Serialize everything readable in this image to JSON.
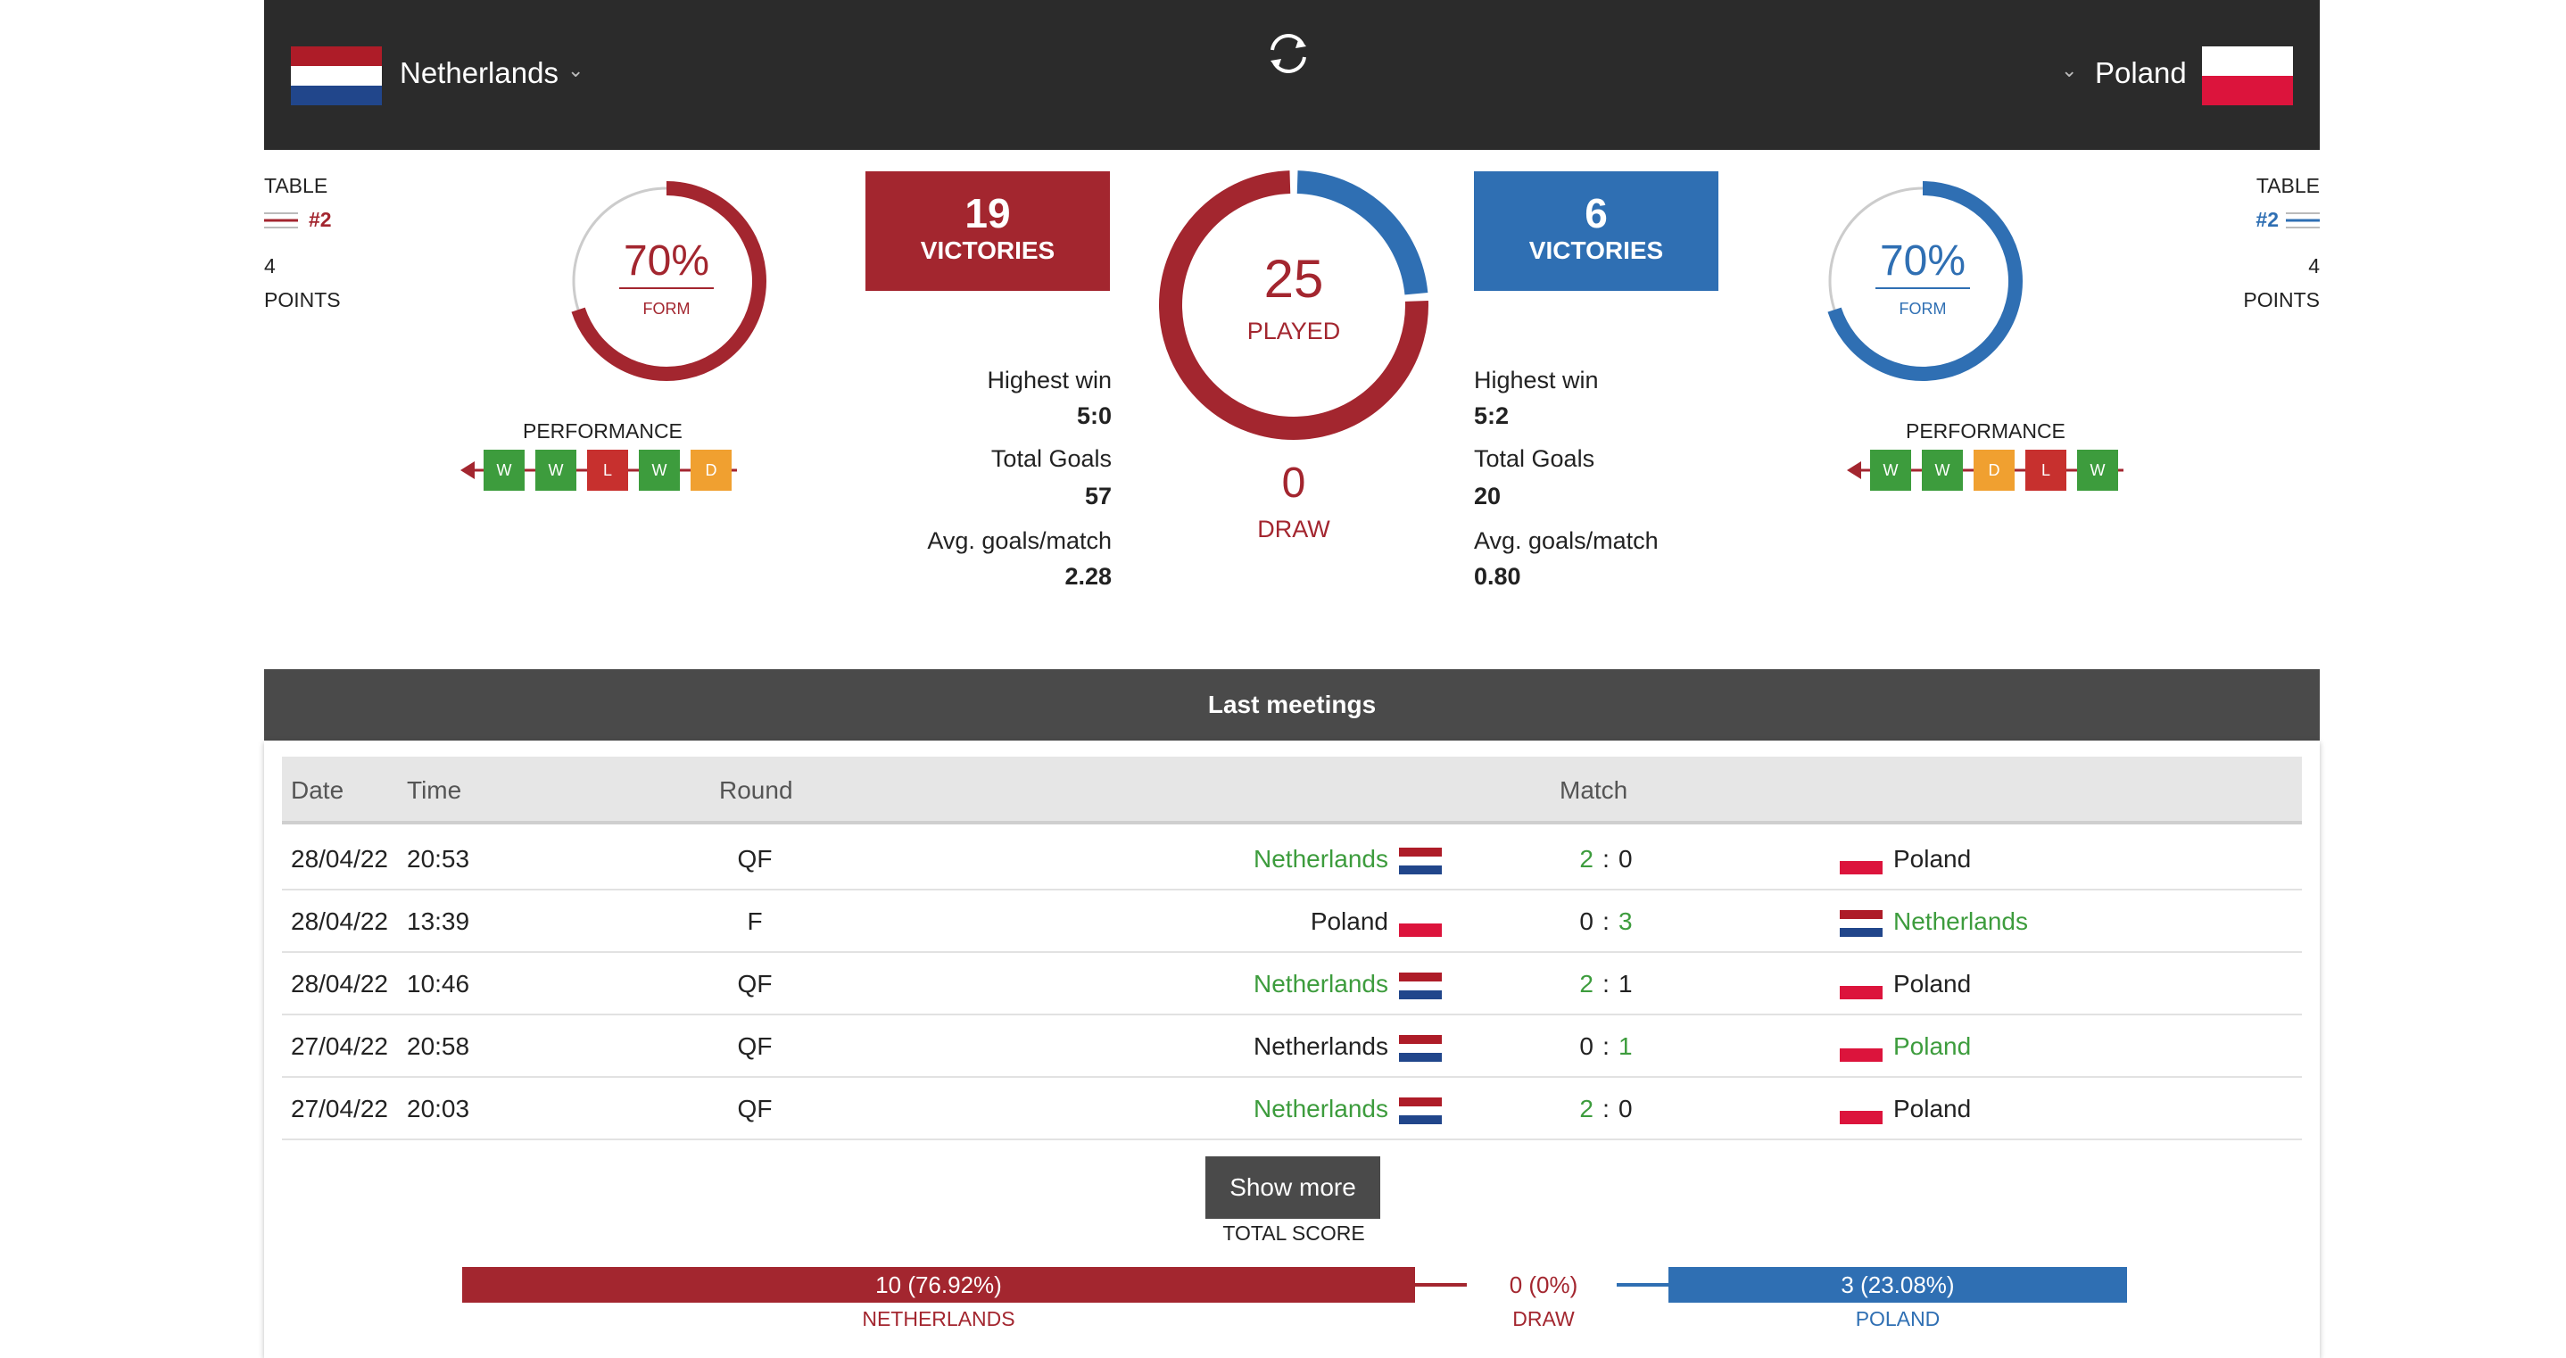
{
  "header": {
    "home_team": "Netherlands",
    "away_team": "Poland",
    "home_flag_colors": [
      "#ae1c28",
      "#ffffff",
      "#21468b"
    ],
    "away_flag_colors": [
      "#ffffff",
      "#dc143c"
    ],
    "refresh_icon": "refresh-icon",
    "dropdown_icon": "chevron-down-icon"
  },
  "home": {
    "table_label": "TABLE",
    "table_rank": "#2",
    "points": "4",
    "points_label": "POINTS",
    "form_pct": "70%",
    "form_label": "FORM",
    "form_value": 0.7,
    "performance_label": "PERFORMANCE",
    "performance": [
      "W",
      "W",
      "L",
      "W",
      "D"
    ],
    "victories": "19",
    "victories_label": "VICTORIES",
    "highest_win_label": "Highest win",
    "highest_win": "5:0",
    "total_goals_label": "Total Goals",
    "total_goals": "57",
    "avg_goals_label": "Avg. goals/match",
    "avg_goals": "2.28"
  },
  "away": {
    "table_label": "TABLE",
    "table_rank": "#2",
    "points": "4",
    "points_label": "POINTS",
    "form_pct": "70%",
    "form_label": "FORM",
    "form_value": 0.7,
    "performance_label": "PERFORMANCE",
    "performance": [
      "W",
      "W",
      "D",
      "L",
      "W"
    ],
    "victories": "6",
    "victories_label": "VICTORIES",
    "highest_win_label": "Highest win",
    "highest_win": "5:2",
    "total_goals_label": "Total Goals",
    "total_goals": "20",
    "avg_goals_label": "Avg. goals/match",
    "avg_goals": "0.80"
  },
  "center": {
    "played": "25",
    "played_label": "PLAYED",
    "draw": "0",
    "draw_label": "DRAW",
    "home_share": 0.76,
    "away_share": 0.24
  },
  "last_meetings": {
    "title": "Last meetings",
    "columns": {
      "date": "Date",
      "time": "Time",
      "round": "Round",
      "match": "Match"
    },
    "rows": [
      {
        "date": "28/04/22",
        "time": "20:53",
        "round": "QF",
        "home": "Netherlands",
        "home_flag": "nl",
        "home_score": "2",
        "sep": ":",
        "away_score": "0",
        "away": "Poland",
        "away_flag": "pl",
        "winner": "home"
      },
      {
        "date": "28/04/22",
        "time": "13:39",
        "round": "F",
        "home": "Poland",
        "home_flag": "pl",
        "home_score": "0",
        "sep": ":",
        "away_score": "3",
        "away": "Netherlands",
        "away_flag": "nl",
        "winner": "away"
      },
      {
        "date": "28/04/22",
        "time": "10:46",
        "round": "QF",
        "home": "Netherlands",
        "home_flag": "nl",
        "home_score": "2",
        "sep": ":",
        "away_score": "1",
        "away": "Poland",
        "away_flag": "pl",
        "winner": "home"
      },
      {
        "date": "27/04/22",
        "time": "20:58",
        "round": "QF",
        "home": "Netherlands",
        "home_flag": "nl",
        "home_score": "0",
        "sep": ":",
        "away_score": "1",
        "away": "Poland",
        "away_flag": "pl",
        "winner": "away"
      },
      {
        "date": "27/04/22",
        "time": "20:03",
        "round": "QF",
        "home": "Netherlands",
        "home_flag": "nl",
        "home_score": "2",
        "sep": ":",
        "away_score": "0",
        "away": "Poland",
        "away_flag": "pl",
        "winner": "home"
      }
    ],
    "show_more": "Show more"
  },
  "total_score": {
    "label": "TOTAL SCORE",
    "home_value": "10 (76.92%)",
    "home_label": "NETHERLANDS",
    "draw_value": "0 (0%)",
    "draw_label": "DRAW",
    "away_value": "3 (23.08%)",
    "away_label": "POLAND"
  },
  "colors": {
    "home": "#a3262f",
    "away": "#2f6fb3",
    "win": "#3d9c3d",
    "loss": "#c7302e",
    "draw": "#f0a030",
    "header_bg": "#2b2b2b"
  }
}
